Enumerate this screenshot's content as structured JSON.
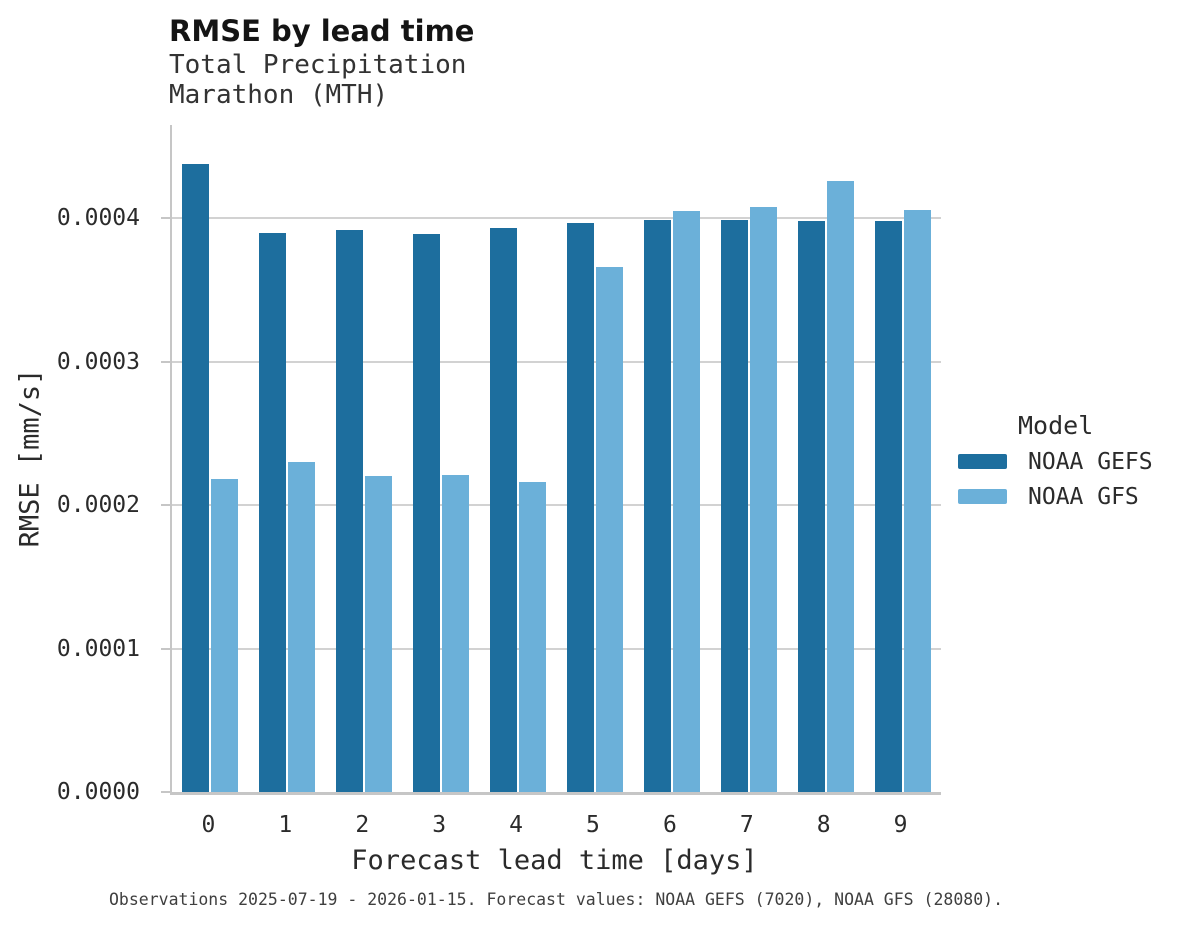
{
  "chart_data": {
    "type": "bar",
    "title": "RMSE by lead time",
    "subtitle": [
      "Total Precipitation",
      "Marathon (MTH)"
    ],
    "categories": [
      "0",
      "1",
      "2",
      "3",
      "4",
      "5",
      "6",
      "7",
      "8",
      "9"
    ],
    "series": [
      {
        "name": "NOAA GEFS",
        "color": "#1d6e9e",
        "values": [
          0.000438,
          0.00039,
          0.000392,
          0.000389,
          0.000393,
          0.000397,
          0.000399,
          0.000399,
          0.000398,
          0.000398
        ]
      },
      {
        "name": "NOAA GFS",
        "color": "#6bb0d9",
        "values": [
          0.000218,
          0.00023,
          0.00022,
          0.000221,
          0.000216,
          0.000366,
          0.000405,
          0.000408,
          0.000426,
          0.000406
        ]
      }
    ],
    "xlabel": "Forecast lead time [days]",
    "ylabel": "RMSE [mm/s]",
    "ylim": [
      0,
      0.000465
    ],
    "yticks": [
      0,
      0.0001,
      0.0002,
      0.0003,
      0.0004
    ],
    "ytick_labels": [
      "0.0000",
      "0.0001",
      "0.0002",
      "0.0003",
      "0.0004"
    ],
    "grid": "horizontal",
    "legend": {
      "title": "Model",
      "position": "right-center"
    },
    "caption": "Observations 2025-07-19 - 2026-01-15. Forecast values: NOAA GEFS (7020), NOAA GFS (28080)."
  },
  "style": {
    "grid_color": "#d2d2d2",
    "spine_color": "#c6c6c6",
    "text_color": "#2b2b2b"
  }
}
